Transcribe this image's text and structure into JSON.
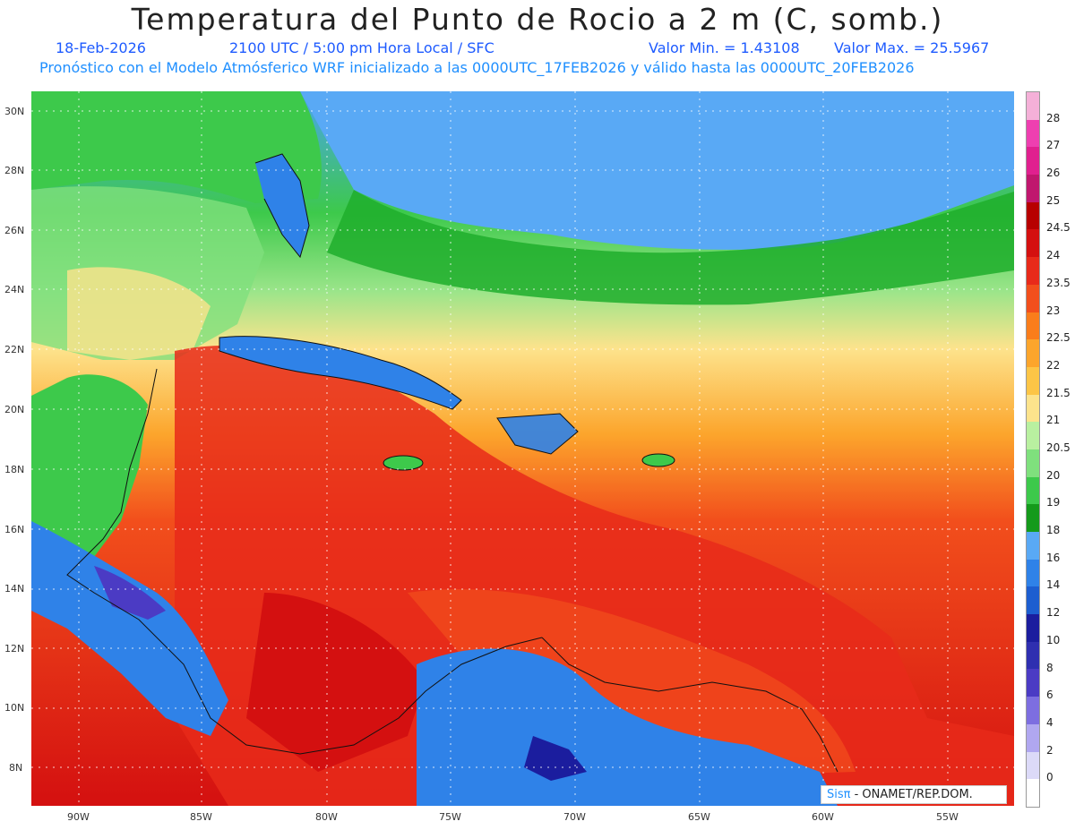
{
  "header": {
    "title": "Temperatura del Punto de Rocio a 2 m (C, somb.)",
    "date": "18-Feb-2026",
    "time": "2100 UTC / 5:00 pm Hora Local / SFC",
    "min": "Valor Min. = 1.43108",
    "max": "Valor Max. = 25.5967",
    "forecast": "Pronóstico con el Modelo Atmósferico WRF inicializado a las 0000UTC_17FEB2026 y válido hasta las  0000UTC_20FEB2026"
  },
  "axes": {
    "lat_labels": [
      "30N",
      "28N",
      "26N",
      "24N",
      "22N",
      "20N",
      "18N",
      "16N",
      "14N",
      "12N",
      "10N",
      "8N"
    ],
    "lon_labels": [
      "90W",
      "85W",
      "80W",
      "75W",
      "70W",
      "65W",
      "60W",
      "55W"
    ]
  },
  "colorbar": {
    "labels": [
      "28",
      "27",
      "26",
      "25",
      "24.5",
      "24",
      "23.5",
      "23",
      "22.5",
      "22",
      "21.5",
      "21",
      "20.5",
      "20",
      "19",
      "18",
      "16",
      "14",
      "12",
      "10",
      "8",
      "6",
      "4",
      "2",
      "0"
    ],
    "colors": [
      "#f5b0d8",
      "#ee3fb0",
      "#e0208f",
      "#c0176e",
      "#b70000",
      "#d41010",
      "#e82a1a",
      "#f24f1c",
      "#fa7d1b",
      "#fca52c",
      "#fdc546",
      "#fde38c",
      "#b9f0a0",
      "#7fe07d",
      "#3dc94b",
      "#159a1b",
      "#59a9f5",
      "#2f82e8",
      "#1d5ed0",
      "#1b1d9e",
      "#2f2fb0",
      "#4b3bc4",
      "#7d6ee0",
      "#b0a7f0",
      "#dcdaf8",
      "#ffffff"
    ]
  },
  "credit": {
    "brand": "Sis",
    "pi": "π",
    "text": " - ONAMET/REP.DOM."
  }
}
